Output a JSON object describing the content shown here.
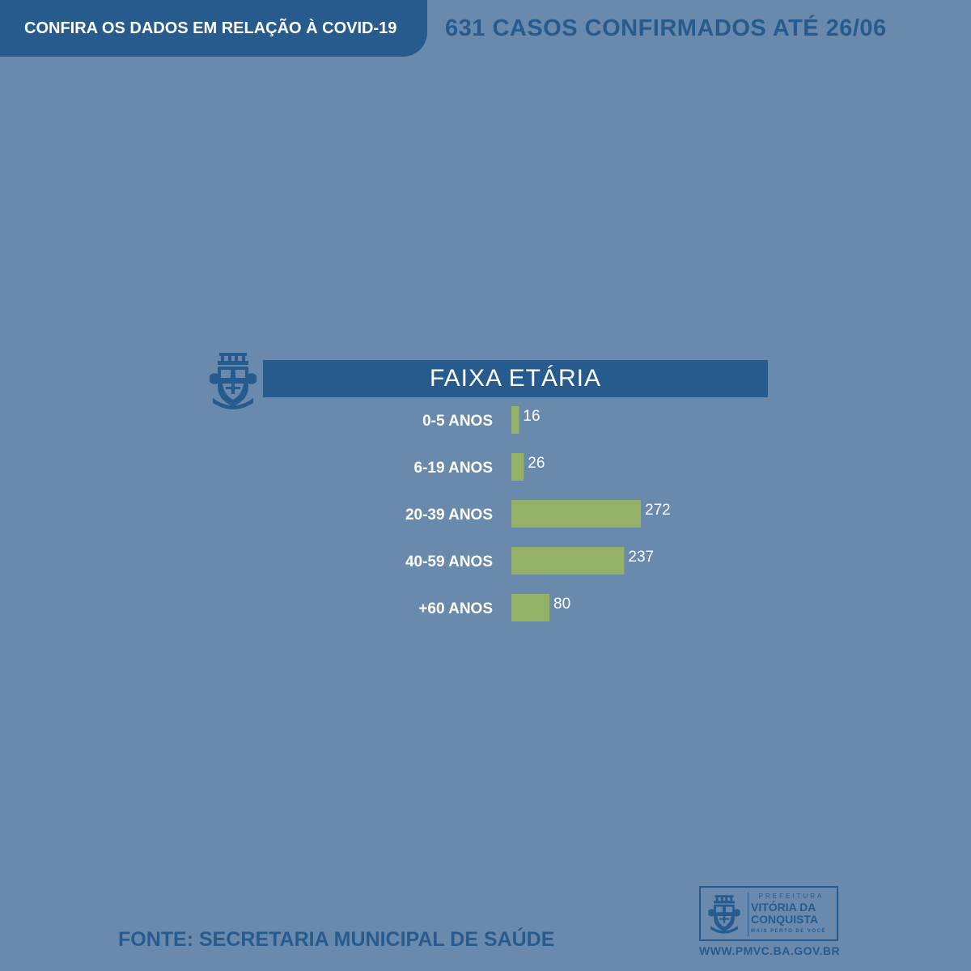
{
  "header": {
    "banner_text": "CONFIRA OS DADOS EM RELAÇÃO À COVID-19",
    "headline": "631 CASOS CONFIRMADOS ATÉ 26/06"
  },
  "chart_data": {
    "type": "bar",
    "orientation": "horizontal",
    "title": "FAIXA ETÁRIA",
    "categories": [
      "0-5 ANOS",
      "6-19 ANOS",
      "20-39 ANOS",
      "40-59 ANOS",
      "+60 ANOS"
    ],
    "values": [
      16,
      26,
      272,
      237,
      80
    ],
    "bar_color": "#94b267",
    "xlim": [
      0,
      272
    ]
  },
  "footer": {
    "source": "FONTE: SECRETARIA MUNICIPAL DE SAÚDE",
    "logo_prefix": "PREFEITURA",
    "logo_name_line1": "VITÓRIA DA",
    "logo_name_line2": "CONQUISTA",
    "logo_tagline": "MAIS PERTO DE VOCÊ",
    "website": "WWW.PMVC.BA.GOV.BR"
  },
  "colors": {
    "background": "#6a8aad",
    "primary": "#275b8e",
    "bar": "#94b267",
    "text_light": "#ffffff"
  },
  "icons": [
    "coat-of-arms-icon"
  ]
}
